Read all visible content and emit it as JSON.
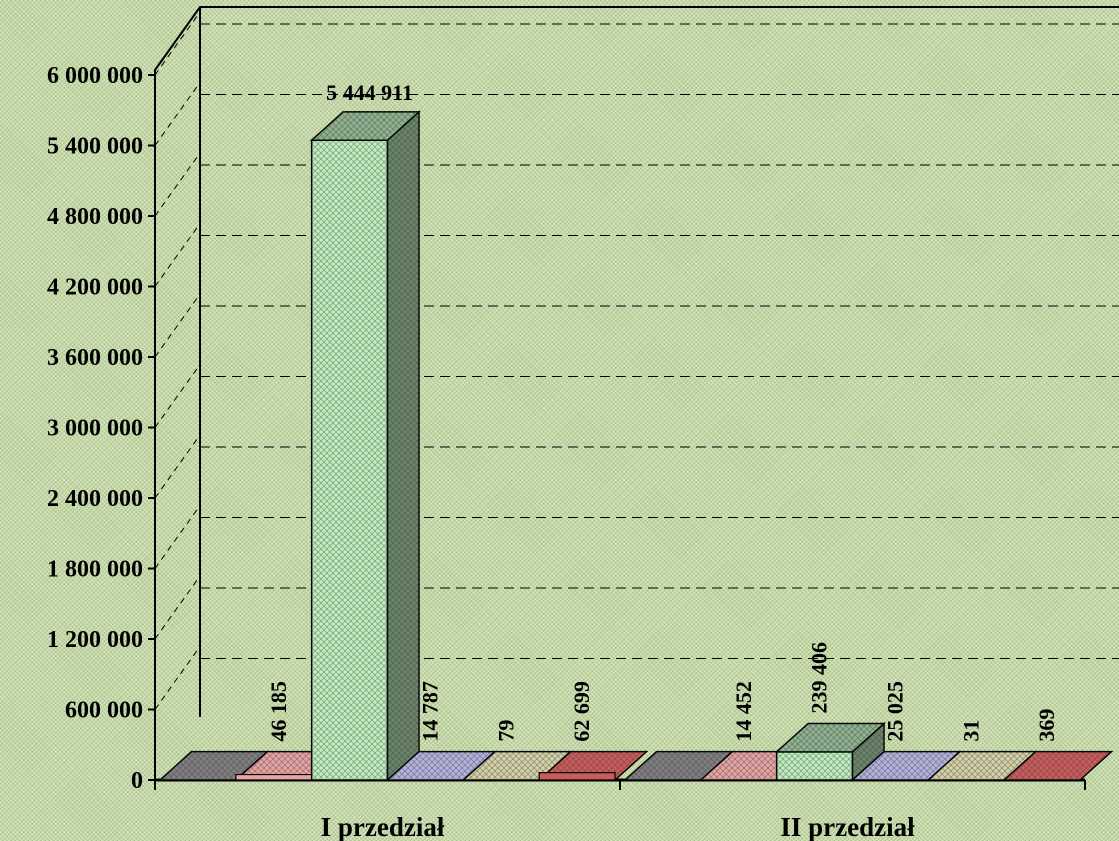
{
  "chart_data": {
    "type": "bar",
    "three_d": true,
    "categories": [
      "I przedział",
      "II przedział"
    ],
    "ylim": [
      0,
      6000000
    ],
    "yticks": [
      0,
      600000,
      1200000,
      1800000,
      2400000,
      3000000,
      3600000,
      4200000,
      4800000,
      5400000,
      6000000
    ],
    "ytick_labels": [
      "0",
      "600 000",
      "1 200 000",
      "1 800 000",
      "2 400 000",
      "3 000 000",
      "3 600 000",
      "4 200 000",
      "4 800 000",
      "5 400 000",
      "6 000 000"
    ],
    "grid": true,
    "series": [
      {
        "color": "#808080",
        "values": [
          0,
          0
        ],
        "labels": [
          "",
          ""
        ]
      },
      {
        "color": "#e8a3a3",
        "values": [
          46185,
          14452
        ],
        "labels": [
          "46 185",
          "14 452"
        ]
      },
      {
        "color": "#bff0bf",
        "values": [
          5444911,
          239406
        ],
        "labels": [
          "5 444 911",
          "239 406"
        ]
      },
      {
        "color": "#b3b3e0",
        "values": [
          14787,
          25025
        ],
        "labels": [
          "14 787",
          "25 025"
        ]
      },
      {
        "color": "#d6d3a8",
        "values": [
          79,
          31
        ],
        "labels": [
          "79",
          "31"
        ]
      },
      {
        "color": "#cc5c5c",
        "values": [
          62699,
          369
        ],
        "labels": [
          "62 699",
          "369"
        ]
      }
    ]
  }
}
